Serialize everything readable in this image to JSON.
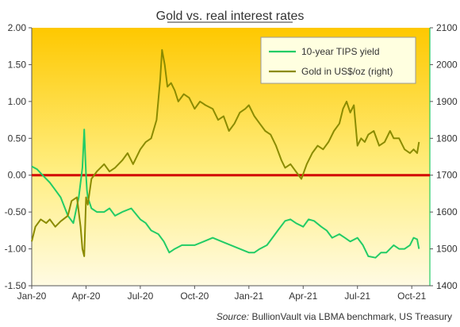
{
  "chart_data": {
    "type": "line",
    "title": "Gold vs. real interest rates",
    "source_label": "Source:",
    "source_text": "BullionVault via LBMA benchmark, US Treasury",
    "x_tick_labels": [
      "Jan-20",
      "Apr-20",
      "Jul-20",
      "Oct-20",
      "Jan-21",
      "Apr-21",
      "Jul-21",
      "Oct-21"
    ],
    "x_ticks": [
      0,
      3,
      6,
      9,
      12,
      15,
      18,
      21
    ],
    "xlim": [
      0,
      22
    ],
    "ylim_left": [
      -1.5,
      2.0
    ],
    "ylim_right": [
      1400,
      2100
    ],
    "y_left_tick_labels": [
      "2.00",
      "1.50",
      "1.00",
      "0.50",
      "0.00",
      "-0.50",
      "-1.00",
      "-1.50"
    ],
    "y_right_tick_labels": [
      "2100",
      "2000",
      "1900",
      "1800",
      "1700",
      "1600",
      "1500",
      "1400"
    ],
    "legend_position": "top-right",
    "zero_line_color": "#d20000",
    "series": [
      {
        "name": "10-year TIPS yield",
        "axis": "left",
        "color": "#22cc66",
        "x": [
          0,
          0.3,
          0.6,
          1.0,
          1.3,
          1.6,
          2.0,
          2.3,
          2.6,
          2.8,
          2.9,
          3.0,
          3.05,
          3.1,
          3.3,
          3.6,
          4.0,
          4.3,
          4.6,
          5.0,
          5.5,
          6.0,
          6.3,
          6.6,
          7.0,
          7.3,
          7.6,
          7.9,
          8.3,
          8.6,
          9.0,
          9.5,
          10.0,
          10.5,
          11.0,
          11.5,
          12.0,
          12.3,
          12.6,
          13.0,
          13.3,
          13.6,
          14.0,
          14.3,
          14.6,
          15.0,
          15.3,
          15.6,
          16.0,
          16.3,
          16.6,
          17.0,
          17.3,
          17.6,
          18.0,
          18.3,
          18.6,
          19.0,
          19.3,
          19.6,
          20.0,
          20.3,
          20.6,
          20.9,
          21.1,
          21.3,
          21.4
        ],
        "values": [
          0.12,
          0.08,
          0.0,
          -0.1,
          -0.2,
          -0.3,
          -0.55,
          -0.65,
          -0.3,
          0.1,
          0.62,
          0.0,
          -0.2,
          -0.3,
          -0.45,
          -0.5,
          -0.5,
          -0.45,
          -0.55,
          -0.5,
          -0.45,
          -0.6,
          -0.65,
          -0.75,
          -0.8,
          -0.9,
          -1.05,
          -1.0,
          -0.95,
          -0.95,
          -0.95,
          -0.9,
          -0.85,
          -0.9,
          -0.95,
          -1.0,
          -1.05,
          -1.05,
          -1.0,
          -0.95,
          -0.85,
          -0.75,
          -0.62,
          -0.6,
          -0.65,
          -0.7,
          -0.6,
          -0.62,
          -0.7,
          -0.75,
          -0.85,
          -0.8,
          -0.85,
          -0.9,
          -0.85,
          -0.95,
          -1.1,
          -1.12,
          -1.05,
          -1.05,
          -0.95,
          -1.0,
          -1.0,
          -0.95,
          -0.85,
          -0.87,
          -1.0
        ]
      },
      {
        "name": "Gold in US$/oz (right)",
        "axis": "right",
        "color": "#8b8b00",
        "x": [
          0,
          0.2,
          0.5,
          0.8,
          1.0,
          1.3,
          1.6,
          2.0,
          2.2,
          2.5,
          2.7,
          2.8,
          2.9,
          3.0,
          3.1,
          3.3,
          3.6,
          4.0,
          4.3,
          4.6,
          5.0,
          5.3,
          5.6,
          6.0,
          6.3,
          6.6,
          6.9,
          7.1,
          7.2,
          7.35,
          7.5,
          7.7,
          7.9,
          8.1,
          8.4,
          8.7,
          9.0,
          9.3,
          9.6,
          10.0,
          10.3,
          10.6,
          10.9,
          11.2,
          11.5,
          11.8,
          12.0,
          12.3,
          12.6,
          12.9,
          13.2,
          13.5,
          13.8,
          14.0,
          14.3,
          14.6,
          14.9,
          15.2,
          15.5,
          15.8,
          16.1,
          16.4,
          16.7,
          17.0,
          17.2,
          17.4,
          17.6,
          17.8,
          18.0,
          18.2,
          18.4,
          18.6,
          18.9,
          19.2,
          19.5,
          19.8,
          20.0,
          20.3,
          20.6,
          20.9,
          21.1,
          21.3,
          21.4
        ],
        "values": [
          1520,
          1560,
          1580,
          1570,
          1580,
          1560,
          1575,
          1590,
          1630,
          1640,
          1560,
          1500,
          1480,
          1640,
          1620,
          1690,
          1710,
          1730,
          1710,
          1720,
          1740,
          1760,
          1730,
          1770,
          1790,
          1800,
          1850,
          1960,
          2040,
          2000,
          1940,
          1950,
          1930,
          1900,
          1920,
          1910,
          1880,
          1900,
          1890,
          1880,
          1850,
          1860,
          1820,
          1840,
          1870,
          1880,
          1890,
          1860,
          1840,
          1820,
          1810,
          1780,
          1740,
          1720,
          1730,
          1710,
          1690,
          1730,
          1760,
          1780,
          1770,
          1790,
          1820,
          1840,
          1880,
          1900,
          1870,
          1890,
          1780,
          1800,
          1790,
          1810,
          1820,
          1780,
          1790,
          1820,
          1800,
          1800,
          1770,
          1760,
          1770,
          1760,
          1790
        ]
      }
    ]
  }
}
